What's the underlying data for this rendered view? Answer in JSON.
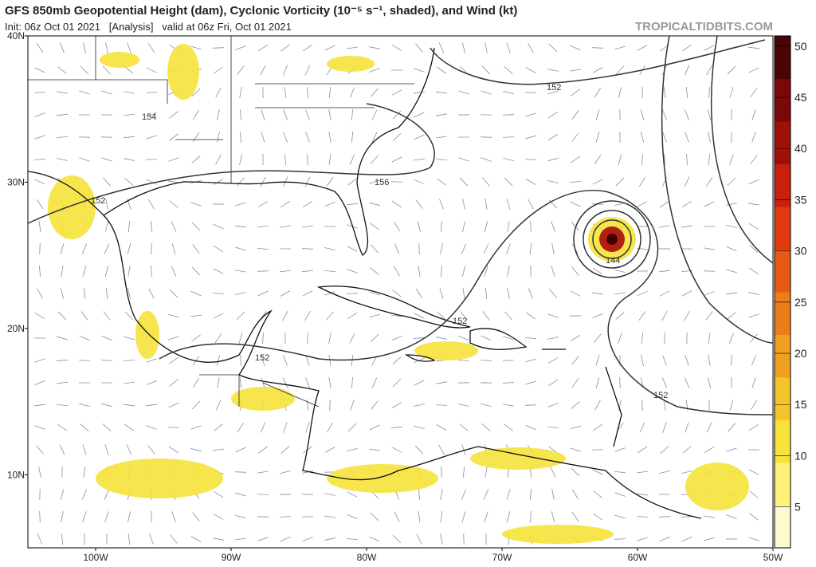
{
  "header": {
    "title": "GFS 850mb Geopotential Height (dam), Cyclonic Vorticity (10⁻⁵ s⁻¹, shaded), and Wind (kt)",
    "subtitle": "Init: 06z Oct 01 2021   [Analysis]   valid at 06z Fri, Oct 01 2021",
    "watermark": "TROPICALTIDBITS.COM"
  },
  "map": {
    "xlim": [
      -105,
      -50
    ],
    "ylim": [
      5,
      40
    ],
    "xticks": [
      {
        "value": -100,
        "label": "100W"
      },
      {
        "value": -90,
        "label": "90W"
      },
      {
        "value": -80,
        "label": "80W"
      },
      {
        "value": -70,
        "label": "70W"
      },
      {
        "value": -60,
        "label": "60W"
      },
      {
        "value": -50,
        "label": "50W"
      }
    ],
    "yticks": [
      {
        "value": 40,
        "label": "40N"
      },
      {
        "value": 30,
        "label": "30N"
      },
      {
        "value": 20,
        "label": "20N"
      },
      {
        "value": 10,
        "label": "10N"
      }
    ],
    "contour_labels": [
      "152",
      "154",
      "152",
      "156",
      "152",
      "144",
      "152",
      "152"
    ]
  },
  "colorbar": {
    "range": [
      1,
      51
    ],
    "ticks": [
      5,
      10,
      15,
      20,
      25,
      30,
      35,
      40,
      45,
      50
    ]
  }
}
